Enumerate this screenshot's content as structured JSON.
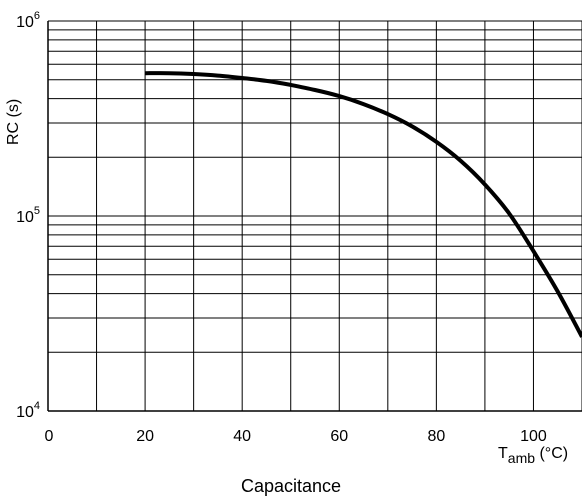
{
  "chart_data": {
    "type": "line",
    "title": "",
    "caption": "Capacitance",
    "xlabel": {
      "main": "T",
      "sub": "amb",
      "unit": " (°C)"
    },
    "ylabel": "RC (s)",
    "x_scale": "linear",
    "y_scale": "log",
    "xlim": [
      0,
      110
    ],
    "ylim": [
      10000,
      1000000
    ],
    "x_ticks": [
      0,
      20,
      40,
      60,
      80,
      100
    ],
    "x_tick_labels": [
      "0",
      "20",
      "40",
      "60",
      "80",
      "100"
    ],
    "y_ticks": [
      {
        "value": 10000,
        "base": "10",
        "exp": "4"
      },
      {
        "value": 100000,
        "base": "10",
        "exp": "5"
      },
      {
        "value": 1000000,
        "base": "10",
        "exp": "6"
      }
    ],
    "grid": true,
    "grid_x_step": 10,
    "grid_y_minor": [
      2,
      3,
      4,
      5,
      6,
      7,
      8,
      9
    ],
    "series": [
      {
        "x": [
          20,
          25,
          30,
          35,
          40,
          45,
          50,
          55,
          60,
          65,
          70,
          75,
          80,
          85,
          90,
          95,
          100,
          105,
          110
        ],
        "y": [
          540000,
          540000,
          535000,
          525000,
          510000,
          493000,
          470000,
          443000,
          412000,
          375000,
          333000,
          288000,
          240000,
          192000,
          145000,
          103000,
          66000,
          41000,
          24000
        ]
      }
    ],
    "colors": {
      "line": "#000000",
      "grid": "#000000",
      "background": "#ffffff"
    }
  }
}
